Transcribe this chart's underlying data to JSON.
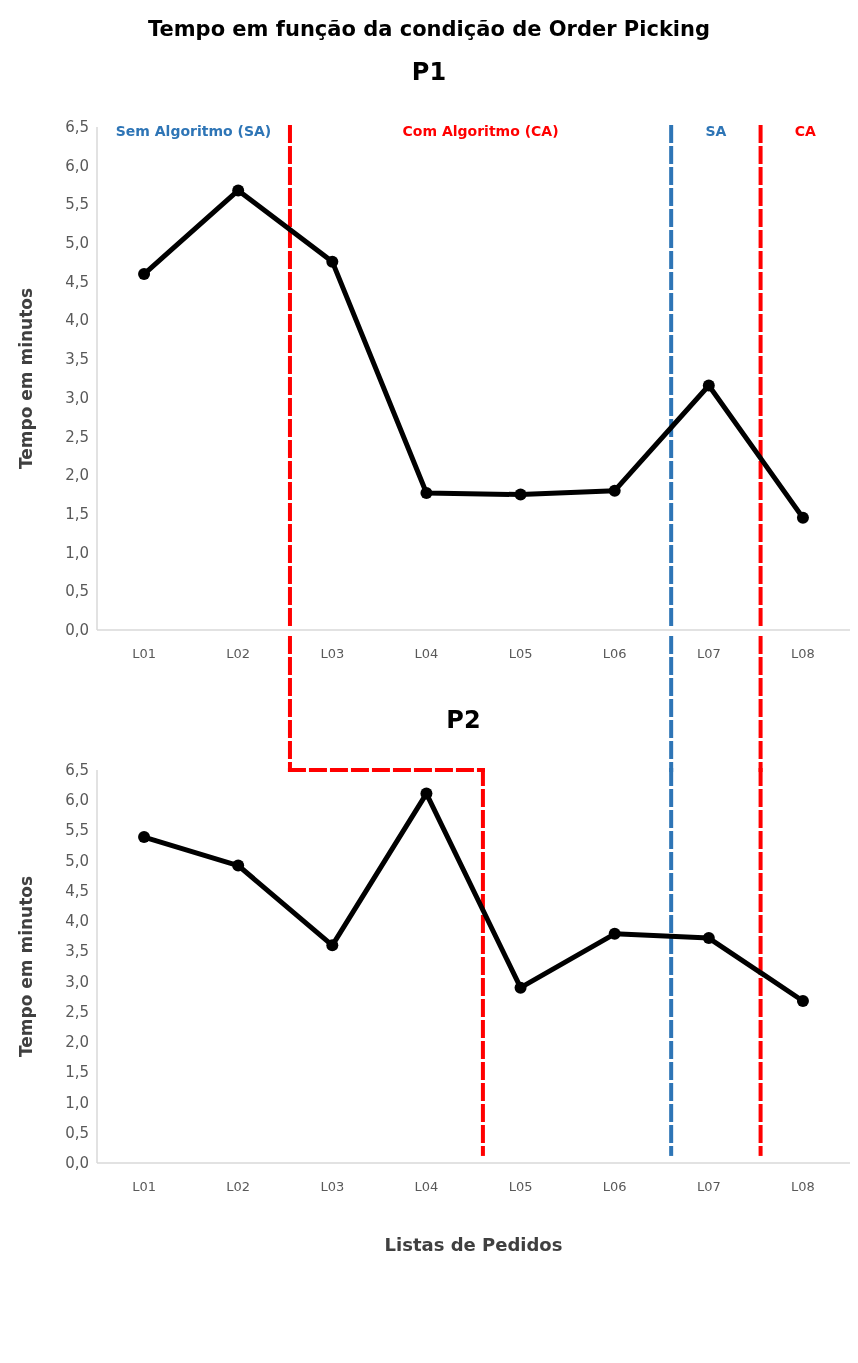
{
  "chart_data": [
    {
      "type": "line",
      "title": "Tempo em função da condição de Order Picking",
      "subtitle": "P1",
      "ylabel": "Tempo em minutos",
      "categories": [
        "L01",
        "L02",
        "L03",
        "L04",
        "L05",
        "L06",
        "L07",
        "L08"
      ],
      "ylim": [
        0,
        6.5
      ],
      "yticks": [
        {
          "value": 0,
          "label": "0,0"
        },
        {
          "value": 0.5,
          "label": "0,5"
        },
        {
          "value": 1,
          "label": "1,0"
        },
        {
          "value": 1.5,
          "label": "1,5"
        },
        {
          "value": 2,
          "label": "2,0"
        },
        {
          "value": 2.5,
          "label": "2,5"
        },
        {
          "value": 3,
          "label": "3,0"
        },
        {
          "value": 3.5,
          "label": "3,5"
        },
        {
          "value": 4,
          "label": "4,0"
        },
        {
          "value": 4.5,
          "label": "4,5"
        },
        {
          "value": 5,
          "label": "5,0"
        },
        {
          "value": 5.5,
          "label": "5,5"
        },
        {
          "value": 6,
          "label": "6,0"
        },
        {
          "value": 6.5,
          "label": "6,5"
        }
      ],
      "series": [
        {
          "color": "#000000",
          "values": [
            4.6,
            5.68,
            4.76,
            1.77,
            1.75,
            1.8,
            3.16,
            1.45
          ]
        }
      ],
      "marker": "circle",
      "line_style": "solid",
      "annotations": [
        "Sem Algoritmo (SA)",
        "Com Algoritmo (CA)",
        "SA",
        "CA"
      ]
    },
    {
      "type": "line",
      "title": "P2",
      "ylabel": "Tempo em minutos",
      "xlabel": "Listas de Pedidos",
      "categories": [
        "L01",
        "L02",
        "L03",
        "L04",
        "L05",
        "L06",
        "L07",
        "L08"
      ],
      "ylim": [
        0,
        6.5
      ],
      "yticks": [
        {
          "value": 0,
          "label": "0,0"
        },
        {
          "value": 0.5,
          "label": "0,5"
        },
        {
          "value": 1,
          "label": "1,0"
        },
        {
          "value": 1.5,
          "label": "1,5"
        },
        {
          "value": 2,
          "label": "2,0"
        },
        {
          "value": 2.5,
          "label": "2,5"
        },
        {
          "value": 3,
          "label": "3,0"
        },
        {
          "value": 3.5,
          "label": "3,5"
        },
        {
          "value": 4,
          "label": "4,0"
        },
        {
          "value": 4.5,
          "label": "4,5"
        },
        {
          "value": 5,
          "label": "5,0"
        },
        {
          "value": 5.5,
          "label": "5,5"
        },
        {
          "value": 6,
          "label": "6,0"
        },
        {
          "value": 6.5,
          "label": "6,5"
        }
      ],
      "series": [
        {
          "color": "#000000",
          "values": [
            5.39,
            4.92,
            3.6,
            6.11,
            2.9,
            3.79,
            3.72,
            2.68
          ]
        }
      ],
      "marker": "circle",
      "line_style": "solid"
    }
  ]
}
